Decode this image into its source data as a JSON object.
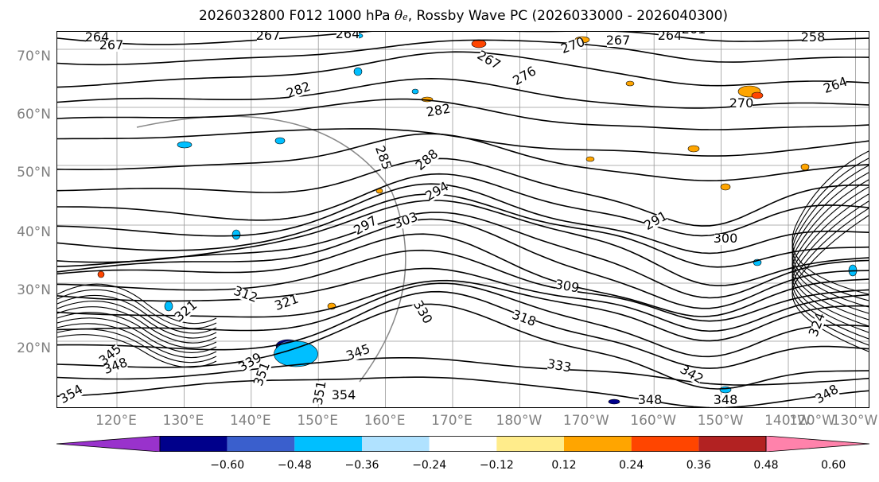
{
  "title": {
    "prefix": "2026032800 F012 1000 hPa ",
    "theta": "θ",
    "theta_sub": "e",
    "suffix": ", Rossby Wave PC (2026033000 - 2026040300)"
  },
  "axes": {
    "lat_labels": [
      "70°N",
      "60°N",
      "50°N",
      "40°N",
      "30°N",
      "20°N"
    ],
    "lon_labels": [
      "120°E",
      "130°E",
      "140°E",
      "150°E",
      "160°E",
      "170°E",
      "180°W",
      "170°W",
      "160°W",
      "150°W",
      "140°W",
      "130°W",
      "120°W"
    ]
  },
  "contour_labels": [
    "264",
    "267",
    "267",
    "264",
    "261",
    "258",
    "267",
    "264",
    "270",
    "267",
    "276",
    "282",
    "282",
    "270",
    "264",
    "285",
    "288",
    "294",
    "297",
    "303",
    "291",
    "300",
    "309",
    "318",
    "312",
    "321",
    "321",
    "330",
    "339",
    "345",
    "345",
    "348",
    "351",
    "354",
    "351",
    "354",
    "333",
    "342",
    "348",
    "348",
    "348",
    "324"
  ],
  "colorbar": {
    "ticks": [
      "−0.60",
      "−0.48",
      "−0.36",
      "−0.24",
      "−0.12",
      "0.12",
      "0.24",
      "0.36",
      "0.48",
      "0.60"
    ],
    "colors": [
      "#9932cc",
      "#00008b",
      "#3a5fcd",
      "#00bfff",
      "#b0e2ff",
      "#ffffff",
      "#ffec8b",
      "#ffa500",
      "#ff4500",
      "#b22222",
      "#ff82ab"
    ],
    "levels": [
      -0.6,
      -0.48,
      -0.36,
      -0.24,
      -0.12,
      0.12,
      0.24,
      0.36,
      0.48,
      0.6
    ]
  }
}
